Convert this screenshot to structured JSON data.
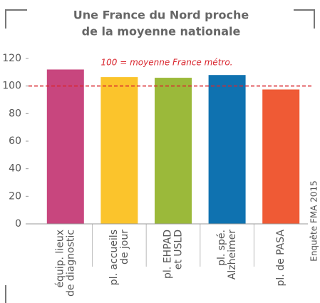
{
  "chart_data": {
    "type": "bar",
    "title": [
      "Une France du Nord proche",
      "de la moyenne nationale"
    ],
    "categories": [
      [
        "équip. lieux",
        "de diagnostic"
      ],
      [
        "pl. accueils",
        "de jour"
      ],
      [
        "pl. EHPAD",
        "et USLD"
      ],
      [
        "pl. spé.",
        "Alzheimer"
      ],
      [
        "pl. de PASA"
      ]
    ],
    "values": [
      112,
      106.5,
      106,
      108,
      97.5
    ],
    "colors": [
      "#c8467e",
      "#fbc42c",
      "#9bb93a",
      "#0f72b0",
      "#ef5a35"
    ],
    "ylim": [
      0,
      120
    ],
    "yticks": [
      0,
      20,
      40,
      60,
      80,
      100,
      120
    ],
    "reference": {
      "value": 100,
      "label": "100 = moyenne France métro.",
      "color": "#d9262e"
    },
    "source": "Enquête FMA 2015"
  }
}
